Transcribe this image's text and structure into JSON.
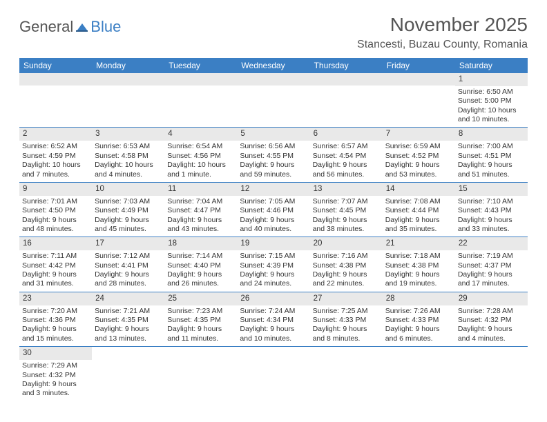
{
  "logo": {
    "text1": "General",
    "text2": "Blue"
  },
  "title": "November 2025",
  "location": "Stancesti, Buzau County, Romania",
  "colors": {
    "header_bg": "#3b7fc4",
    "header_text": "#ffffff",
    "daynum_bg": "#e9e9e9",
    "border": "#3b7fc4",
    "text": "#333333"
  },
  "dayHeaders": [
    "Sunday",
    "Monday",
    "Tuesday",
    "Wednesday",
    "Thursday",
    "Friday",
    "Saturday"
  ],
  "weeks": [
    [
      null,
      null,
      null,
      null,
      null,
      null,
      {
        "n": "1",
        "sunrise": "Sunrise: 6:50 AM",
        "sunset": "Sunset: 5:00 PM",
        "day1": "Daylight: 10 hours",
        "day2": "and 10 minutes."
      }
    ],
    [
      {
        "n": "2",
        "sunrise": "Sunrise: 6:52 AM",
        "sunset": "Sunset: 4:59 PM",
        "day1": "Daylight: 10 hours",
        "day2": "and 7 minutes."
      },
      {
        "n": "3",
        "sunrise": "Sunrise: 6:53 AM",
        "sunset": "Sunset: 4:58 PM",
        "day1": "Daylight: 10 hours",
        "day2": "and 4 minutes."
      },
      {
        "n": "4",
        "sunrise": "Sunrise: 6:54 AM",
        "sunset": "Sunset: 4:56 PM",
        "day1": "Daylight: 10 hours",
        "day2": "and 1 minute."
      },
      {
        "n": "5",
        "sunrise": "Sunrise: 6:56 AM",
        "sunset": "Sunset: 4:55 PM",
        "day1": "Daylight: 9 hours",
        "day2": "and 59 minutes."
      },
      {
        "n": "6",
        "sunrise": "Sunrise: 6:57 AM",
        "sunset": "Sunset: 4:54 PM",
        "day1": "Daylight: 9 hours",
        "day2": "and 56 minutes."
      },
      {
        "n": "7",
        "sunrise": "Sunrise: 6:59 AM",
        "sunset": "Sunset: 4:52 PM",
        "day1": "Daylight: 9 hours",
        "day2": "and 53 minutes."
      },
      {
        "n": "8",
        "sunrise": "Sunrise: 7:00 AM",
        "sunset": "Sunset: 4:51 PM",
        "day1": "Daylight: 9 hours",
        "day2": "and 51 minutes."
      }
    ],
    [
      {
        "n": "9",
        "sunrise": "Sunrise: 7:01 AM",
        "sunset": "Sunset: 4:50 PM",
        "day1": "Daylight: 9 hours",
        "day2": "and 48 minutes."
      },
      {
        "n": "10",
        "sunrise": "Sunrise: 7:03 AM",
        "sunset": "Sunset: 4:49 PM",
        "day1": "Daylight: 9 hours",
        "day2": "and 45 minutes."
      },
      {
        "n": "11",
        "sunrise": "Sunrise: 7:04 AM",
        "sunset": "Sunset: 4:47 PM",
        "day1": "Daylight: 9 hours",
        "day2": "and 43 minutes."
      },
      {
        "n": "12",
        "sunrise": "Sunrise: 7:05 AM",
        "sunset": "Sunset: 4:46 PM",
        "day1": "Daylight: 9 hours",
        "day2": "and 40 minutes."
      },
      {
        "n": "13",
        "sunrise": "Sunrise: 7:07 AM",
        "sunset": "Sunset: 4:45 PM",
        "day1": "Daylight: 9 hours",
        "day2": "and 38 minutes."
      },
      {
        "n": "14",
        "sunrise": "Sunrise: 7:08 AM",
        "sunset": "Sunset: 4:44 PM",
        "day1": "Daylight: 9 hours",
        "day2": "and 35 minutes."
      },
      {
        "n": "15",
        "sunrise": "Sunrise: 7:10 AM",
        "sunset": "Sunset: 4:43 PM",
        "day1": "Daylight: 9 hours",
        "day2": "and 33 minutes."
      }
    ],
    [
      {
        "n": "16",
        "sunrise": "Sunrise: 7:11 AM",
        "sunset": "Sunset: 4:42 PM",
        "day1": "Daylight: 9 hours",
        "day2": "and 31 minutes."
      },
      {
        "n": "17",
        "sunrise": "Sunrise: 7:12 AM",
        "sunset": "Sunset: 4:41 PM",
        "day1": "Daylight: 9 hours",
        "day2": "and 28 minutes."
      },
      {
        "n": "18",
        "sunrise": "Sunrise: 7:14 AM",
        "sunset": "Sunset: 4:40 PM",
        "day1": "Daylight: 9 hours",
        "day2": "and 26 minutes."
      },
      {
        "n": "19",
        "sunrise": "Sunrise: 7:15 AM",
        "sunset": "Sunset: 4:39 PM",
        "day1": "Daylight: 9 hours",
        "day2": "and 24 minutes."
      },
      {
        "n": "20",
        "sunrise": "Sunrise: 7:16 AM",
        "sunset": "Sunset: 4:38 PM",
        "day1": "Daylight: 9 hours",
        "day2": "and 22 minutes."
      },
      {
        "n": "21",
        "sunrise": "Sunrise: 7:18 AM",
        "sunset": "Sunset: 4:38 PM",
        "day1": "Daylight: 9 hours",
        "day2": "and 19 minutes."
      },
      {
        "n": "22",
        "sunrise": "Sunrise: 7:19 AM",
        "sunset": "Sunset: 4:37 PM",
        "day1": "Daylight: 9 hours",
        "day2": "and 17 minutes."
      }
    ],
    [
      {
        "n": "23",
        "sunrise": "Sunrise: 7:20 AM",
        "sunset": "Sunset: 4:36 PM",
        "day1": "Daylight: 9 hours",
        "day2": "and 15 minutes."
      },
      {
        "n": "24",
        "sunrise": "Sunrise: 7:21 AM",
        "sunset": "Sunset: 4:35 PM",
        "day1": "Daylight: 9 hours",
        "day2": "and 13 minutes."
      },
      {
        "n": "25",
        "sunrise": "Sunrise: 7:23 AM",
        "sunset": "Sunset: 4:35 PM",
        "day1": "Daylight: 9 hours",
        "day2": "and 11 minutes."
      },
      {
        "n": "26",
        "sunrise": "Sunrise: 7:24 AM",
        "sunset": "Sunset: 4:34 PM",
        "day1": "Daylight: 9 hours",
        "day2": "and 10 minutes."
      },
      {
        "n": "27",
        "sunrise": "Sunrise: 7:25 AM",
        "sunset": "Sunset: 4:33 PM",
        "day1": "Daylight: 9 hours",
        "day2": "and 8 minutes."
      },
      {
        "n": "28",
        "sunrise": "Sunrise: 7:26 AM",
        "sunset": "Sunset: 4:33 PM",
        "day1": "Daylight: 9 hours",
        "day2": "and 6 minutes."
      },
      {
        "n": "29",
        "sunrise": "Sunrise: 7:28 AM",
        "sunset": "Sunset: 4:32 PM",
        "day1": "Daylight: 9 hours",
        "day2": "and 4 minutes."
      }
    ],
    [
      {
        "n": "30",
        "sunrise": "Sunrise: 7:29 AM",
        "sunset": "Sunset: 4:32 PM",
        "day1": "Daylight: 9 hours",
        "day2": "and 3 minutes."
      },
      null,
      null,
      null,
      null,
      null,
      null
    ]
  ]
}
